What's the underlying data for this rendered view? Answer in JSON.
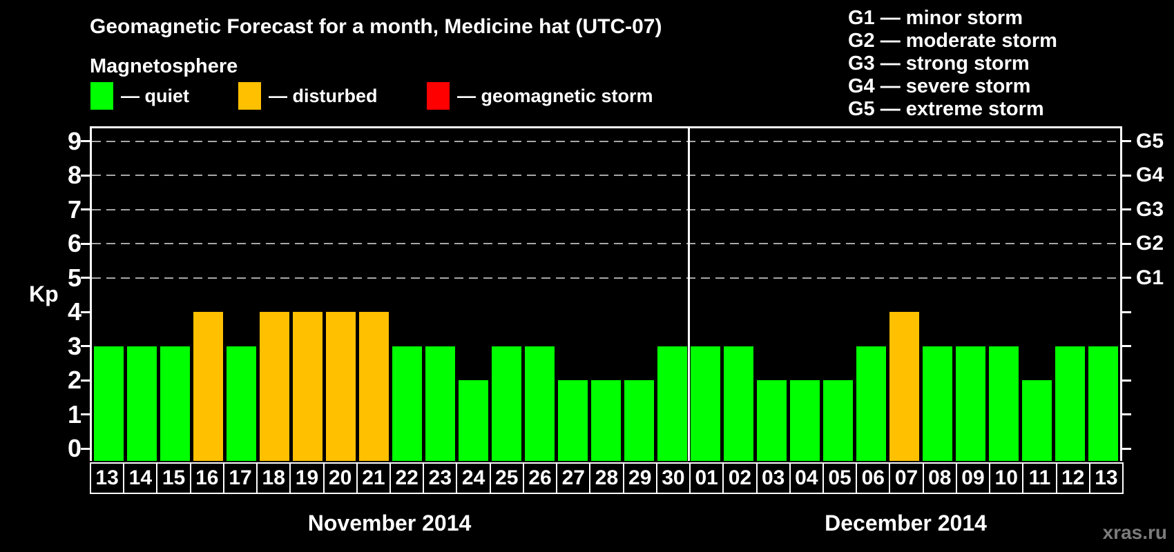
{
  "title": "Geomagnetic Forecast for a month, Medicine hat (UTC-07)",
  "subtitle": "Magnetosphere",
  "watermark": "xras.ru",
  "colors": {
    "background": "#000000",
    "quiet": "#00ff00",
    "disturbed": "#ffc000",
    "storm": "#ff0000",
    "axis": "#ffffff",
    "grid": "#a8a8a8",
    "watermark": "#7b7b7b"
  },
  "magnetosphere_legend": [
    {
      "key": "quiet",
      "label": "— quiet",
      "color": "#00ff00"
    },
    {
      "key": "disturbed",
      "label": "— disturbed",
      "color": "#ffc000"
    },
    {
      "key": "storm",
      "label": "— geomagnetic storm",
      "color": "#ff0000"
    }
  ],
  "g_scale_legend": [
    "G1 — minor storm",
    "G2 — moderate storm",
    "G3 — strong storm",
    "G4 — severe storm",
    "G5 — extreme storm"
  ],
  "chart_data": {
    "type": "bar",
    "ylabel": "Kp",
    "ylim": [
      0,
      9
    ],
    "yticks": [
      0,
      1,
      2,
      3,
      4,
      5,
      6,
      7,
      8,
      9
    ],
    "gridlines_at": [
      5,
      6,
      7,
      8,
      9
    ],
    "grid_style": "dashed",
    "legend_position": "top",
    "right_axis": [
      {
        "kp": 5,
        "label": "G1"
      },
      {
        "kp": 6,
        "label": "G2"
      },
      {
        "kp": 7,
        "label": "G3"
      },
      {
        "kp": 8,
        "label": "G4"
      },
      {
        "kp": 9,
        "label": "G5"
      }
    ],
    "months": [
      {
        "name": "November 2014",
        "days": 18
      },
      {
        "name": "December 2014",
        "days": 13
      }
    ],
    "categories": [
      "13",
      "14",
      "15",
      "16",
      "17",
      "18",
      "19",
      "20",
      "21",
      "22",
      "23",
      "24",
      "25",
      "26",
      "27",
      "28",
      "29",
      "30",
      "01",
      "02",
      "03",
      "04",
      "05",
      "06",
      "07",
      "08",
      "09",
      "10",
      "11",
      "12",
      "13"
    ],
    "values": [
      3,
      3,
      3,
      4,
      3,
      4,
      4,
      4,
      4,
      3,
      3,
      2,
      3,
      3,
      2,
      2,
      2,
      3,
      3,
      3,
      2,
      2,
      2,
      3,
      4,
      3,
      3,
      3,
      2,
      3,
      3
    ],
    "statuses": [
      "quiet",
      "quiet",
      "quiet",
      "disturbed",
      "quiet",
      "disturbed",
      "disturbed",
      "disturbed",
      "disturbed",
      "quiet",
      "quiet",
      "quiet",
      "quiet",
      "quiet",
      "quiet",
      "quiet",
      "quiet",
      "quiet",
      "quiet",
      "quiet",
      "quiet",
      "quiet",
      "quiet",
      "quiet",
      "disturbed",
      "quiet",
      "quiet",
      "quiet",
      "quiet",
      "quiet",
      "quiet"
    ]
  }
}
